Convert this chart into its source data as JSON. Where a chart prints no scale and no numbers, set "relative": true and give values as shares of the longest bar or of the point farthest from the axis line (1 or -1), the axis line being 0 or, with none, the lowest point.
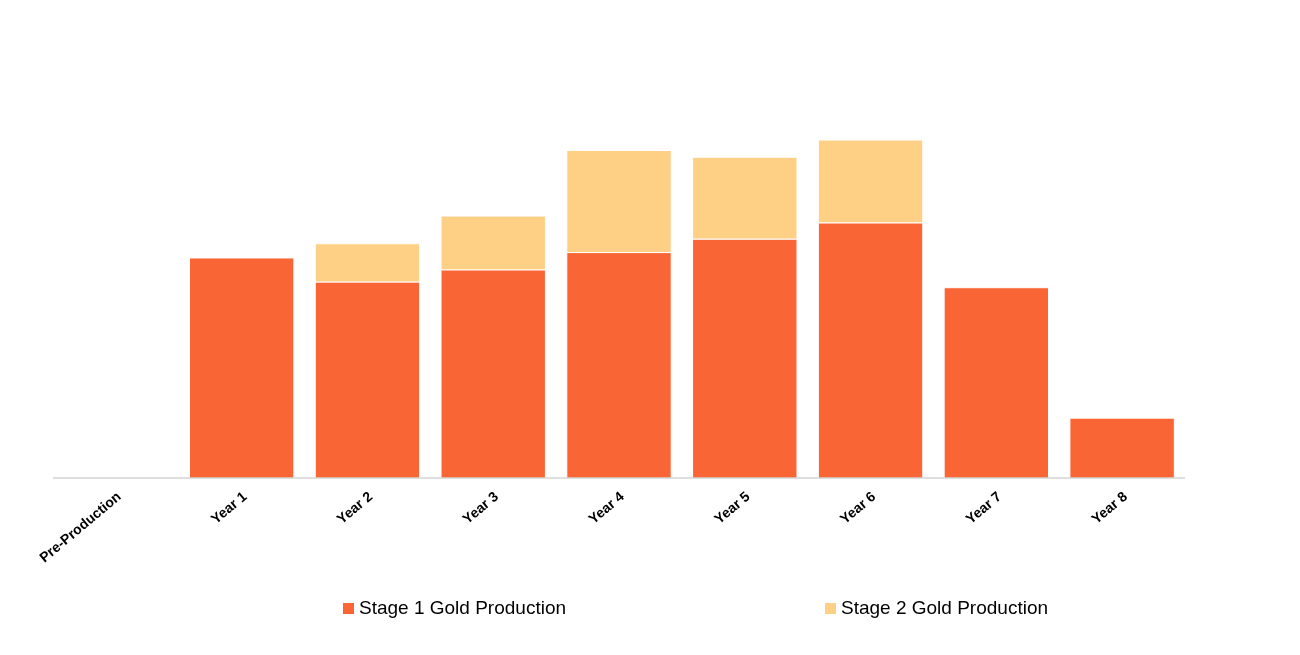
{
  "chart_data": {
    "type": "bar",
    "relative": true,
    "stacked": true,
    "legend": "bottom",
    "categories": [
      "Pre-Production",
      "Year 1",
      "Year 2",
      "Year 3",
      "Year 4",
      "Year 5",
      "Year 6",
      "Year 7",
      "Year 8"
    ],
    "series": [
      {
        "name": "Stage 1 Gold Production",
        "color": "#f96535",
        "values": [
          0,
          0.651,
          0.58,
          0.616,
          0.667,
          0.707,
          0.755,
          0.563,
          0.177
        ]
      },
      {
        "name": "Stage 2 Gold Production",
        "color": "#fdd086",
        "values": [
          0,
          0,
          0.113,
          0.159,
          0.302,
          0.242,
          0.245,
          0,
          0
        ]
      }
    ]
  }
}
